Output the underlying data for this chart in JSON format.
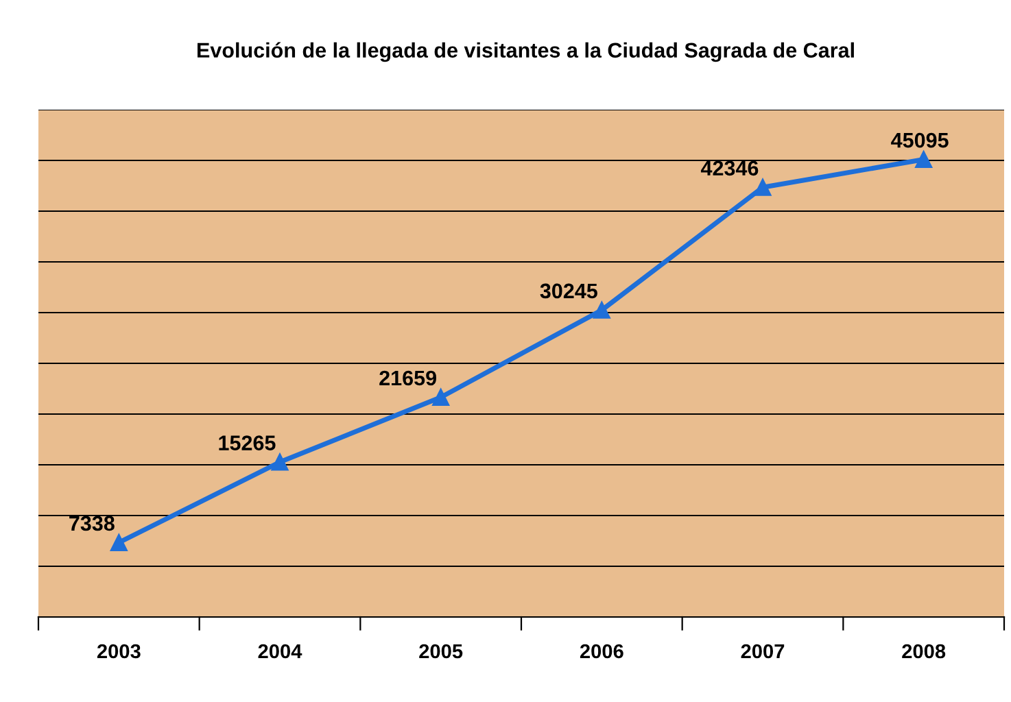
{
  "chart_data": {
    "type": "line",
    "title": "Evolución de la llegada de visitantes a la Ciudad Sagrada de Caral",
    "categories": [
      "2003",
      "2004",
      "2005",
      "2006",
      "2007",
      "2008"
    ],
    "series": [
      {
        "color": "#1f6fd8",
        "values": [
          7338,
          15265,
          21659,
          30245,
          42346,
          45095
        ]
      }
    ],
    "ylim": [
      0,
      50000
    ],
    "yticks": [
      {
        "value": 0,
        "label": null
      },
      {
        "value": 5000,
        "label": null
      },
      {
        "value": 10000,
        "label": null
      },
      {
        "value": 15000,
        "label": null
      },
      {
        "value": 20000,
        "label": null
      },
      {
        "value": 25000,
        "label": null
      },
      {
        "value": 30000,
        "label": null
      },
      {
        "value": 35000,
        "label": null
      },
      {
        "value": 40000,
        "label": null
      },
      {
        "value": 45000,
        "label": null
      },
      {
        "value": 50000,
        "label": null
      }
    ],
    "grid": "y",
    "data_labels": true,
    "marker": "triangle",
    "line_style": "solid",
    "tick_labels": "x"
  }
}
